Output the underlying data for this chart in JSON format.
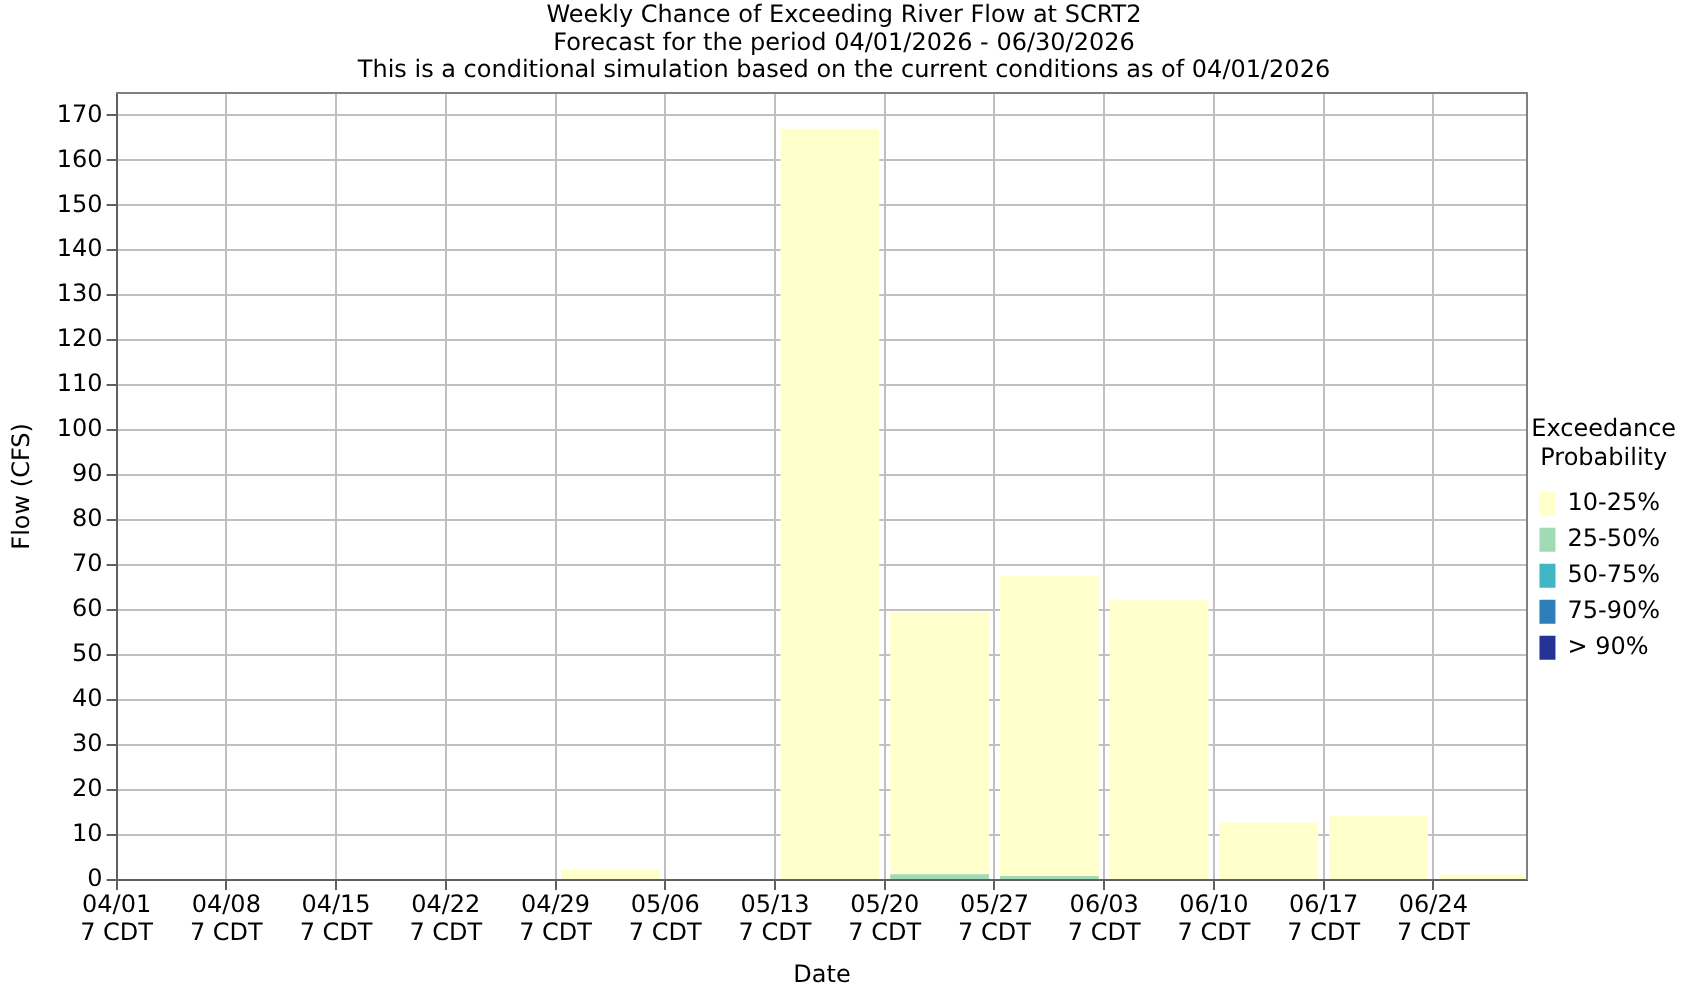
{
  "chart_data": {
    "type": "bar",
    "title": "Weekly Chance of Exceeding River Flow at SCRT2",
    "subtitle": "Forecast for the period 04/01/2026 - 06/30/2026\nThis is a conditional simulation based on the current conditions as of 04/01/2026",
    "xlabel": "Date",
    "ylabel": "Flow (CFS)",
    "legend_title": "Exceedance Probability",
    "x": [
      "2026-04-04T19:00",
      "2026-04-11T19:00",
      "2026-04-18T19:00",
      "2026-04-25T19:00",
      "2026-05-02T19:00",
      "2026-05-09T19:00",
      "2026-05-16T19:00",
      "2026-05-23T19:00",
      "2026-05-30T19:00",
      "2026-06-06T19:00",
      "2026-06-13T19:00",
      "2026-06-20T19:00",
      "2026-06-27T19:00"
    ],
    "stacked": true,
    "series": [
      {
        "name": "> 90%",
        "color": "#253494",
        "values": [
          0,
          0,
          0,
          0,
          0,
          0,
          0,
          0,
          0,
          0,
          0,
          0,
          0
        ]
      },
      {
        "name": "75-90%",
        "color": "#2c7fb8",
        "values": [
          0,
          0,
          0,
          0,
          0,
          0,
          0,
          0,
          0,
          0,
          0,
          0,
          0
        ]
      },
      {
        "name": "50-75%",
        "color": "#41b6c4",
        "values": [
          0,
          0,
          0,
          0,
          0,
          0,
          0,
          0,
          0,
          0,
          0,
          0,
          0
        ]
      },
      {
        "name": "25-50%",
        "color": "#a1dab4",
        "values": [
          0,
          0,
          0,
          0,
          0,
          0,
          0,
          1.3,
          0.9,
          0,
          0,
          0,
          0
        ]
      },
      {
        "name": "10-25%",
        "color": "#ffffcc",
        "values": [
          0,
          0,
          0,
          0,
          2.2,
          0,
          167,
          58.2,
          66.7,
          62.2,
          12.8,
          14.2,
          1.2
        ]
      }
    ],
    "xlim": [
      "2026-04-01T07:00",
      "2026-06-30T07:00"
    ],
    "xticks": [
      {
        "value": "2026-04-01T07:00",
        "label": "04/01\n7 CDT"
      },
      {
        "value": "2026-04-08T07:00",
        "label": "04/08\n7 CDT"
      },
      {
        "value": "2026-04-15T07:00",
        "label": "04/15\n7 CDT"
      },
      {
        "value": "2026-04-22T07:00",
        "label": "04/22\n7 CDT"
      },
      {
        "value": "2026-04-29T07:00",
        "label": "04/29\n7 CDT"
      },
      {
        "value": "2026-05-06T07:00",
        "label": "05/06\n7 CDT"
      },
      {
        "value": "2026-05-13T07:00",
        "label": "05/13\n7 CDT"
      },
      {
        "value": "2026-05-20T07:00",
        "label": "05/20\n7 CDT"
      },
      {
        "value": "2026-05-27T07:00",
        "label": "05/27\n7 CDT"
      },
      {
        "value": "2026-06-03T07:00",
        "label": "06/03\n7 CDT"
      },
      {
        "value": "2026-06-10T07:00",
        "label": "06/10\n7 CDT"
      },
      {
        "value": "2026-06-17T07:00",
        "label": "06/17\n7 CDT"
      },
      {
        "value": "2026-06-24T07:00",
        "label": "06/24\n7 CDT"
      }
    ],
    "ylim": [
      0,
      175
    ],
    "yticks": [
      0,
      10,
      20,
      30,
      40,
      50,
      60,
      70,
      80,
      90,
      100,
      110,
      120,
      130,
      140,
      150,
      160,
      170
    ],
    "grid": true,
    "legend": "right"
  }
}
